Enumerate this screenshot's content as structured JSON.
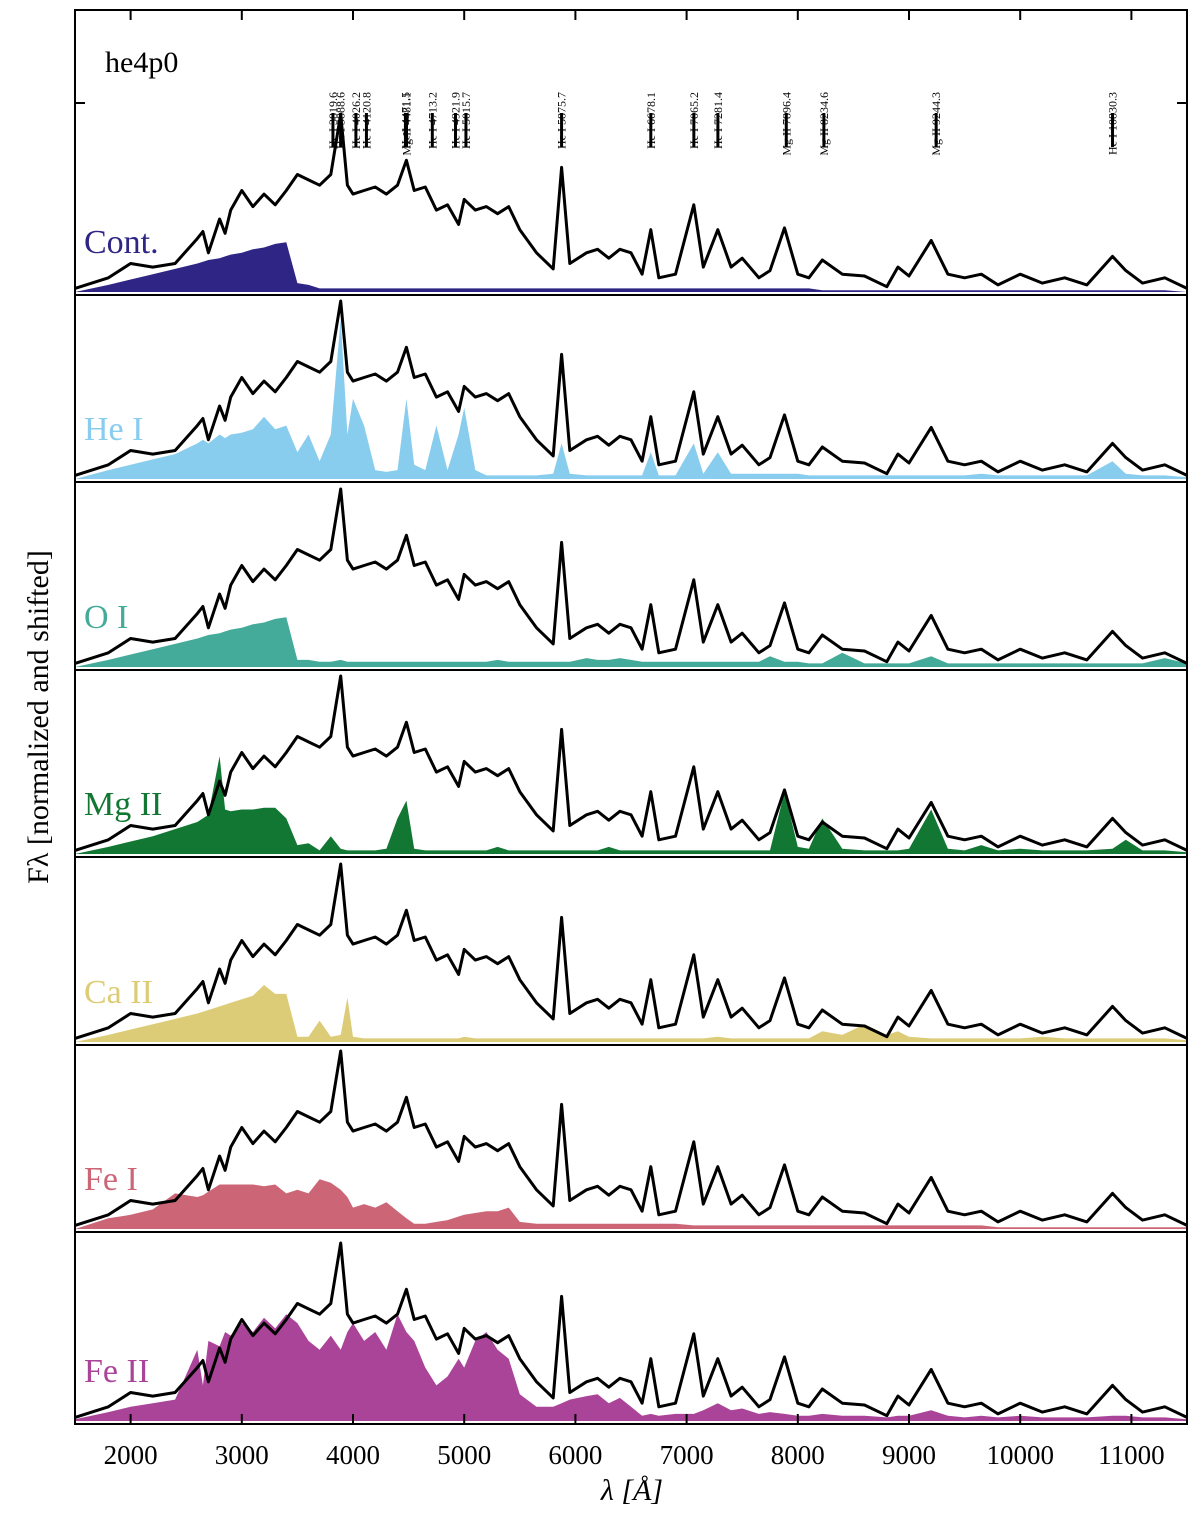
{
  "chart_data": {
    "type": "line",
    "title": "he4p0",
    "x_label": "λ [Å]",
    "y_label": "Fλ [normalized and shifted]",
    "xlim": [
      1500,
      11500
    ],
    "xticks": [
      2000,
      3000,
      4000,
      5000,
      6000,
      7000,
      8000,
      9000,
      10000,
      11000
    ],
    "ylim": [
      0,
      1
    ],
    "color": "#000000",
    "x": [
      1500,
      1800,
      2000,
      2200,
      2400,
      2600,
      2650,
      2700,
      2800,
      2850,
      2900,
      3000,
      3100,
      3200,
      3300,
      3400,
      3500,
      3600,
      3700,
      3800,
      3889,
      3950,
      4000,
      4100,
      4200,
      4300,
      4400,
      4480,
      4550,
      4650,
      4750,
      4850,
      4950,
      5000,
      5100,
      5200,
      5300,
      5400,
      5500,
      5650,
      5800,
      5876,
      5950,
      6100,
      6200,
      6300,
      6400,
      6500,
      6600,
      6678,
      6750,
      6900,
      7065,
      7150,
      7281,
      7400,
      7500,
      7650,
      7750,
      7880,
      8000,
      8100,
      8220,
      8400,
      8600,
      8800,
      8900,
      9000,
      9200,
      9350,
      9500,
      9650,
      9800,
      10000,
      10200,
      10400,
      10600,
      10830,
      10950,
      11100,
      11300,
      11500
    ],
    "values": [
      0.02,
      0.08,
      0.16,
      0.14,
      0.16,
      0.3,
      0.34,
      0.22,
      0.41,
      0.33,
      0.46,
      0.57,
      0.48,
      0.55,
      0.49,
      0.57,
      0.66,
      0.63,
      0.6,
      0.66,
      1.0,
      0.6,
      0.55,
      0.57,
      0.59,
      0.55,
      0.6,
      0.74,
      0.57,
      0.59,
      0.46,
      0.49,
      0.38,
      0.52,
      0.46,
      0.48,
      0.44,
      0.48,
      0.35,
      0.22,
      0.13,
      0.7,
      0.16,
      0.22,
      0.24,
      0.19,
      0.24,
      0.22,
      0.1,
      0.35,
      0.08,
      0.1,
      0.49,
      0.14,
      0.35,
      0.14,
      0.19,
      0.08,
      0.12,
      0.36,
      0.1,
      0.08,
      0.18,
      0.1,
      0.09,
      0.03,
      0.14,
      0.09,
      0.29,
      0.1,
      0.08,
      0.1,
      0.04,
      0.1,
      0.05,
      0.08,
      0.04,
      0.2,
      0.12,
      0.05,
      0.08,
      0.02
    ],
    "series": [
      {
        "name": "Cont.",
        "color": "#2e2585",
        "values": [
          0,
          0.04,
          0.07,
          0.1,
          0.13,
          0.16,
          0.17,
          0.18,
          0.19,
          0.2,
          0.21,
          0.22,
          0.24,
          0.25,
          0.27,
          0.28,
          0.05,
          0.04,
          0.02,
          0.02,
          0.02,
          0.02,
          0.02,
          0.02,
          0.02,
          0.02,
          0.02,
          0.02,
          0.02,
          0.02,
          0.02,
          0.02,
          0.02,
          0.02,
          0.02,
          0.02,
          0.02,
          0.02,
          0.02,
          0.02,
          0.02,
          0.02,
          0.02,
          0.02,
          0.02,
          0.02,
          0.02,
          0.02,
          0.02,
          0.02,
          0.02,
          0.02,
          0.02,
          0.02,
          0.02,
          0.02,
          0.02,
          0.02,
          0.02,
          0.02,
          0.02,
          0.02,
          0.01,
          0.01,
          0.01,
          0.01,
          0.01,
          0.01,
          0.01,
          0.01,
          0.01,
          0.01,
          0.01,
          0.01,
          0.01,
          0.01,
          0.01,
          0.01,
          0.01,
          0.01,
          0.01,
          0
        ]
      },
      {
        "name": "He I",
        "color": "#88ccee",
        "values": [
          0.0,
          0.05,
          0.08,
          0.11,
          0.14,
          0.2,
          0.22,
          0.2,
          0.25,
          0.23,
          0.25,
          0.26,
          0.28,
          0.35,
          0.28,
          0.3,
          0.15,
          0.25,
          0.1,
          0.25,
          0.9,
          0.25,
          0.45,
          0.3,
          0.05,
          0.04,
          0.05,
          0.45,
          0.08,
          0.05,
          0.3,
          0.05,
          0.25,
          0.4,
          0.05,
          0.02,
          0.02,
          0.02,
          0.02,
          0.02,
          0.03,
          0.2,
          0.03,
          0.02,
          0.02,
          0.02,
          0.02,
          0.02,
          0.02,
          0.15,
          0.02,
          0.02,
          0.2,
          0.03,
          0.15,
          0.03,
          0.03,
          0.03,
          0.03,
          0.03,
          0.03,
          0.02,
          0.02,
          0.02,
          0.02,
          0.02,
          0.02,
          0.02,
          0.02,
          0.02,
          0.02,
          0.03,
          0.02,
          0.02,
          0.02,
          0.02,
          0.02,
          0.1,
          0.03,
          0.02,
          0.02,
          0.01
        ]
      },
      {
        "name": "O I",
        "color": "#44aa99",
        "values": [
          0,
          0.04,
          0.07,
          0.1,
          0.13,
          0.16,
          0.17,
          0.18,
          0.19,
          0.2,
          0.21,
          0.22,
          0.24,
          0.25,
          0.27,
          0.28,
          0.04,
          0.04,
          0.03,
          0.03,
          0.04,
          0.03,
          0.03,
          0.03,
          0.03,
          0.03,
          0.03,
          0.03,
          0.03,
          0.03,
          0.03,
          0.03,
          0.03,
          0.03,
          0.03,
          0.03,
          0.04,
          0.03,
          0.03,
          0.03,
          0.03,
          0.03,
          0.03,
          0.05,
          0.04,
          0.04,
          0.05,
          0.04,
          0.03,
          0.03,
          0.03,
          0.03,
          0.03,
          0.03,
          0.03,
          0.03,
          0.03,
          0.03,
          0.06,
          0.03,
          0.03,
          0.02,
          0.02,
          0.08,
          0.02,
          0.02,
          0.02,
          0.02,
          0.06,
          0.02,
          0.02,
          0.02,
          0.02,
          0.02,
          0.02,
          0.02,
          0.02,
          0.02,
          0.02,
          0.02,
          0.05,
          0.02
        ]
      },
      {
        "name": "Mg II",
        "color": "#117733",
        "values": [
          0,
          0.04,
          0.07,
          0.1,
          0.14,
          0.18,
          0.2,
          0.22,
          0.55,
          0.25,
          0.24,
          0.25,
          0.25,
          0.26,
          0.26,
          0.2,
          0.05,
          0.06,
          0.02,
          0.1,
          0.03,
          0.02,
          0.02,
          0.02,
          0.02,
          0.03,
          0.2,
          0.3,
          0.03,
          0.02,
          0.02,
          0.02,
          0.02,
          0.02,
          0.02,
          0.02,
          0.04,
          0.02,
          0.02,
          0.02,
          0.02,
          0.02,
          0.02,
          0.02,
          0.02,
          0.04,
          0.02,
          0.02,
          0.02,
          0.02,
          0.02,
          0.02,
          0.02,
          0.02,
          0.02,
          0.02,
          0.02,
          0.02,
          0.02,
          0.35,
          0.04,
          0.03,
          0.2,
          0.03,
          0.02,
          0.02,
          0.02,
          0.03,
          0.25,
          0.03,
          0.02,
          0.05,
          0.02,
          0.03,
          0.02,
          0.02,
          0.02,
          0.03,
          0.08,
          0.02,
          0.02,
          0.01
        ]
      },
      {
        "name": "Ca II",
        "color": "#ddcc77",
        "values": [
          0,
          0.04,
          0.07,
          0.1,
          0.13,
          0.16,
          0.17,
          0.18,
          0.2,
          0.21,
          0.22,
          0.24,
          0.26,
          0.32,
          0.27,
          0.27,
          0.03,
          0.03,
          0.12,
          0.03,
          0.04,
          0.25,
          0.03,
          0.02,
          0.02,
          0.02,
          0.02,
          0.02,
          0.02,
          0.02,
          0.02,
          0.02,
          0.02,
          0.03,
          0.02,
          0.02,
          0.02,
          0.02,
          0.02,
          0.02,
          0.02,
          0.02,
          0.02,
          0.02,
          0.02,
          0.02,
          0.02,
          0.02,
          0.02,
          0.02,
          0.02,
          0.02,
          0.02,
          0.02,
          0.03,
          0.02,
          0.02,
          0.02,
          0.02,
          0.02,
          0.02,
          0.02,
          0.06,
          0.04,
          0.1,
          0.04,
          0.06,
          0.03,
          0.02,
          0.02,
          0.02,
          0.02,
          0.02,
          0.02,
          0.03,
          0.02,
          0.02,
          0.02,
          0.02,
          0.02,
          0.02,
          0.01
        ]
      },
      {
        "name": "Fe I",
        "color": "#cc6677",
        "values": [
          0,
          0.06,
          0.08,
          0.11,
          0.2,
          0.18,
          0.19,
          0.21,
          0.25,
          0.25,
          0.25,
          0.25,
          0.25,
          0.24,
          0.25,
          0.2,
          0.22,
          0.2,
          0.28,
          0.26,
          0.22,
          0.18,
          0.12,
          0.14,
          0.12,
          0.15,
          0.1,
          0.06,
          0.03,
          0.03,
          0.04,
          0.05,
          0.07,
          0.08,
          0.09,
          0.1,
          0.1,
          0.12,
          0.04,
          0.03,
          0.03,
          0.03,
          0.03,
          0.03,
          0.03,
          0.03,
          0.03,
          0.03,
          0.03,
          0.03,
          0.03,
          0.03,
          0.02,
          0.02,
          0.02,
          0.02,
          0.02,
          0.02,
          0.02,
          0.02,
          0.02,
          0.02,
          0.02,
          0.02,
          0.02,
          0.02,
          0.02,
          0.02,
          0.02,
          0.02,
          0.02,
          0.02,
          0.01,
          0.01,
          0.01,
          0.01,
          0.01,
          0.01,
          0.01,
          0.01,
          0.01,
          0.01
        ]
      },
      {
        "name": "Fe II",
        "color": "#aa4499",
        "values": [
          0.01,
          0.05,
          0.08,
          0.1,
          0.12,
          0.4,
          0.2,
          0.45,
          0.42,
          0.5,
          0.48,
          0.55,
          0.5,
          0.58,
          0.52,
          0.6,
          0.55,
          0.45,
          0.4,
          0.48,
          0.4,
          0.5,
          0.55,
          0.45,
          0.5,
          0.4,
          0.6,
          0.5,
          0.45,
          0.3,
          0.2,
          0.25,
          0.35,
          0.3,
          0.45,
          0.5,
          0.4,
          0.35,
          0.15,
          0.08,
          0.08,
          0.1,
          0.12,
          0.14,
          0.15,
          0.1,
          0.13,
          0.08,
          0.03,
          0.04,
          0.03,
          0.04,
          0.04,
          0.06,
          0.1,
          0.06,
          0.07,
          0.04,
          0.05,
          0.04,
          0.03,
          0.03,
          0.04,
          0.03,
          0.03,
          0.02,
          0.03,
          0.03,
          0.06,
          0.03,
          0.02,
          0.03,
          0.02,
          0.03,
          0.02,
          0.02,
          0.02,
          0.03,
          0.03,
          0.02,
          0.02,
          0.01
        ]
      }
    ],
    "lines": [
      {
        "label": "He I 3819.6",
        "x": 3819.6
      },
      {
        "label": "He I 3888.6",
        "x": 3888.6
      },
      {
        "label": "He I 4026.2",
        "x": 4026.2
      },
      {
        "label": "He I 4120.8",
        "x": 4120.8
      },
      {
        "label": "He I 4471.5",
        "x": 4471.5
      },
      {
        "label": "Mg II 4481.1",
        "x": 4481.1
      },
      {
        "label": "He I 4713.2",
        "x": 4713.2
      },
      {
        "label": "He I 4921.9",
        "x": 4921.9
      },
      {
        "label": "He I 5015.7",
        "x": 5015.7
      },
      {
        "label": "He I 5875.7",
        "x": 5875.7
      },
      {
        "label": "He I 6678.1",
        "x": 6678.1
      },
      {
        "label": "He I 7065.2",
        "x": 7065.2
      },
      {
        "label": "He I 7281.4",
        "x": 7281.4
      },
      {
        "label": "Mg II 7896.4",
        "x": 7896.4
      },
      {
        "label": "Mg II 8234.6",
        "x": 8234.6
      },
      {
        "label": "Mg II 9244.3",
        "x": 9244.3
      },
      {
        "label": "He I 10830.3",
        "x": 10830.3
      }
    ]
  }
}
